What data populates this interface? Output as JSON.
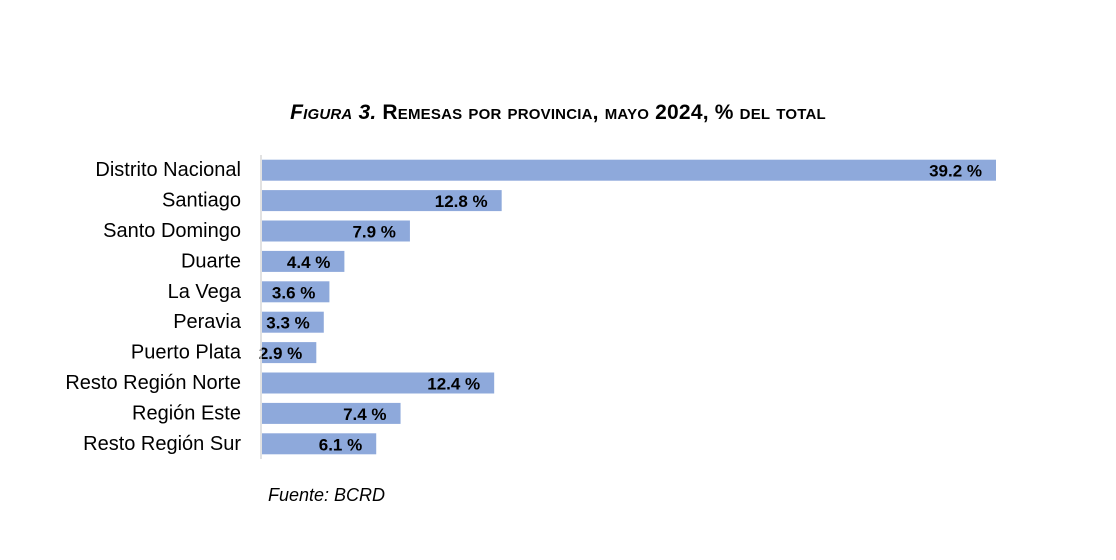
{
  "figure": {
    "title_prefix": "Figura 3.",
    "title_main": "Remesas por provincia, mayo 2024, % del total",
    "source": "Fuente: BCRD"
  },
  "colors": {
    "bar": "#8EA9DB",
    "axis": "#D9D9D9",
    "text": "#000000"
  },
  "chart_data": {
    "type": "bar",
    "orientation": "horizontal",
    "title": "Figura 3. Remesas por provincia, mayo 2024, % del total",
    "categories": [
      "Distrito Nacional",
      "Santiago",
      "Santo Domingo",
      "Duarte",
      "La Vega",
      "Peravia",
      "Puerto Plata",
      "Resto Región Norte",
      "Región Este",
      "Resto Región Sur"
    ],
    "values": [
      39.2,
      12.8,
      7.9,
      4.4,
      3.6,
      3.3,
      2.9,
      12.4,
      7.4,
      6.1
    ],
    "data_labels": [
      "39.2 %",
      "12.8 %",
      "7.9 %",
      "4.4 %",
      "3.6 %",
      "3.3 %",
      "2.9 %",
      "12.4 %",
      "7.4 %",
      "6.1 %"
    ],
    "xlim": [
      0,
      39.2
    ],
    "grid": false,
    "legend": "none",
    "xlabel": "",
    "ylabel": ""
  }
}
